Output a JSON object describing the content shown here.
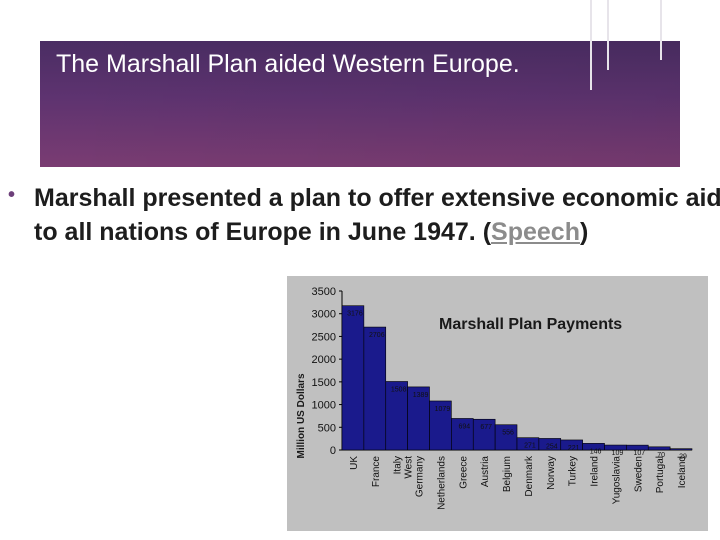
{
  "slide": {
    "title": "The Marshall Plan aided Western Europe.",
    "bullet_text_before_link": "Marshall presented a plan to offer extensive economic aid to all nations of Europe in June 1947. (",
    "link_text": "Speech",
    "bullet_text_after_link": ")"
  },
  "colors": {
    "banner": "#5e3370",
    "bar_fill": "#1a1a8c",
    "chart_bg": "#c0c0c0"
  },
  "chart_data": {
    "type": "bar",
    "title": "Marshall Plan Payments",
    "ylabel": "Million US Dollars",
    "xlabel": "",
    "ylim": [
      0,
      3500
    ],
    "yticks": [
      0,
      500,
      1000,
      1500,
      2000,
      2500,
      3000,
      3500
    ],
    "grid": false,
    "categories": [
      "UK",
      "France",
      "Italy",
      "West Germany",
      "Netherlands",
      "Greece",
      "Austria",
      "Belgium",
      "Denmark",
      "Norway",
      "Turkey",
      "Ireland",
      "Yugoslavia",
      "Sweden",
      "Portugal",
      "Iceland"
    ],
    "values": [
      3176,
      2706,
      1508,
      1389,
      1079,
      694,
      677,
      556,
      271,
      254,
      221,
      146,
      109,
      107,
      70,
      29
    ],
    "data_labels": [
      "3176",
      "2706",
      "1508",
      "1389",
      "1079",
      "694",
      "677",
      "556",
      "271",
      "254",
      "221",
      "146",
      "109",
      "107",
      "70",
      "29"
    ]
  }
}
